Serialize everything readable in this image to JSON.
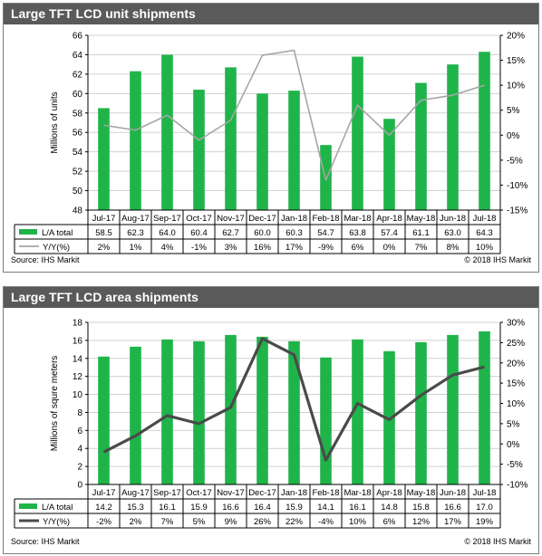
{
  "panels": [
    {
      "title": "Large TFT LCD unit shipments",
      "source": "Source: IHS Markit",
      "copyright": "© 2018 IHS Markit"
    },
    {
      "title": "Large TFT LCD area shipments",
      "source": "Source: IHS Markit",
      "copyright": "© 2018 IHS Markit"
    }
  ],
  "colors": {
    "bar": "#1fb44a",
    "line1": "#a6a6a6",
    "line2": "#4a4a4a",
    "header": "#5a5a5a"
  },
  "chart_data": [
    {
      "type": "bar",
      "title": "Large TFT LCD unit shipments",
      "categories": [
        "Jul-17",
        "Aug-17",
        "Sep-17",
        "Oct-17",
        "Nov-17",
        "Dec-17",
        "Jan-18",
        "Feb-18",
        "Mar-18",
        "Apr-18",
        "May-18",
        "Jun-18",
        "Jul-18"
      ],
      "series": [
        {
          "name": "L/A total",
          "type": "bar",
          "axis": "left",
          "values": [
            58.5,
            62.3,
            64.0,
            60.4,
            62.7,
            60.0,
            60.3,
            54.7,
            63.8,
            57.4,
            61.1,
            63.0,
            64.3
          ],
          "labels": [
            "58.5",
            "62.3",
            "64.0",
            "60.4",
            "62.7",
            "60.0",
            "60.3",
            "54.7",
            "63.8",
            "57.4",
            "61.1",
            "63.0",
            "64.3"
          ]
        },
        {
          "name": "Y/Y(%)",
          "type": "line",
          "axis": "right",
          "values": [
            2,
            1,
            4,
            -1,
            3,
            16,
            17,
            -9,
            6,
            0,
            7,
            8,
            10
          ],
          "labels": [
            "2%",
            "1%",
            "4%",
            "-1%",
            "3%",
            "16%",
            "17%",
            "-9%",
            "6%",
            "0%",
            "7%",
            "8%",
            "10%"
          ]
        }
      ],
      "ylabel": "Millions of units",
      "ylim": [
        48,
        66
      ],
      "yticks": [
        "48",
        "50",
        "52",
        "54",
        "56",
        "58",
        "60",
        "62",
        "64",
        "66"
      ],
      "y2lim": [
        -15,
        20
      ],
      "y2ticks": [
        "-15%",
        "-10%",
        "-5%",
        "0%",
        "5%",
        "10%",
        "15%",
        "20%"
      ],
      "grid": true
    },
    {
      "type": "bar",
      "title": "Large TFT LCD area shipments",
      "categories": [
        "Jul-17",
        "Aug-17",
        "Sep-17",
        "Oct-17",
        "Nov-17",
        "Dec-17",
        "Jan-18",
        "Feb-18",
        "Mar-18",
        "Apr-18",
        "May-18",
        "Jun-18",
        "Jul-18"
      ],
      "series": [
        {
          "name": "L/A total",
          "type": "bar",
          "axis": "left",
          "values": [
            14.2,
            15.3,
            16.1,
            15.9,
            16.6,
            16.4,
            15.9,
            14.1,
            16.1,
            14.8,
            15.8,
            16.6,
            17.0
          ],
          "labels": [
            "14.2",
            "15.3",
            "16.1",
            "15.9",
            "16.6",
            "16.4",
            "15.9",
            "14.1",
            "16.1",
            "14.8",
            "15.8",
            "16.6",
            "17.0"
          ]
        },
        {
          "name": "Y/Y(%)",
          "type": "line",
          "axis": "right",
          "values": [
            -2,
            2,
            7,
            5,
            9,
            26,
            22,
            -4,
            10,
            6,
            12,
            17,
            19
          ],
          "labels": [
            "-2%",
            "2%",
            "7%",
            "5%",
            "9%",
            "26%",
            "22%",
            "-4%",
            "10%",
            "6%",
            "12%",
            "17%",
            "19%"
          ]
        }
      ],
      "ylabel": "Millions of squre meters",
      "ylim": [
        0,
        18
      ],
      "yticks": [
        "0",
        "2",
        "4",
        "6",
        "8",
        "10",
        "12",
        "14",
        "16",
        "18"
      ],
      "y2lim": [
        -10,
        30
      ],
      "y2ticks": [
        "-10%",
        "-5%",
        "0%",
        "5%",
        "10%",
        "15%",
        "20%",
        "25%",
        "30%"
      ],
      "grid": true
    }
  ]
}
